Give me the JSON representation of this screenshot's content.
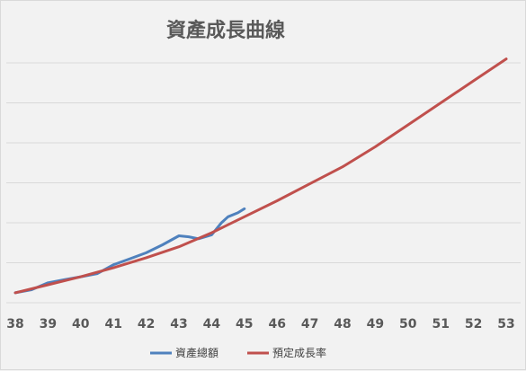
{
  "chart_data": {
    "type": "line",
    "title": "資產成長曲線",
    "xlabel": "",
    "ylabel": "",
    "x_ticks": [
      "38",
      "39",
      "40",
      "41",
      "42",
      "43",
      "44",
      "45",
      "46",
      "47",
      "48",
      "49",
      "50",
      "51",
      "52",
      "53"
    ],
    "xlim": [
      38,
      53
    ],
    "y_range": [
      0,
      120
    ],
    "y_tick_labels_shown": false,
    "grid": "horizontal",
    "legend": "bottom",
    "series": [
      {
        "name": "資產總額",
        "color": "#4f81bd",
        "x": [
          38,
          38.5,
          39,
          39.5,
          40,
          40.5,
          41,
          41.5,
          42,
          42.5,
          43,
          43.3,
          43.6,
          44,
          44.3,
          44.5,
          44.8,
          45
        ],
        "y": [
          5,
          6.5,
          10,
          11.5,
          13,
          14.5,
          19,
          22,
          25,
          29,
          33.5,
          33,
          32,
          34,
          40,
          43,
          45,
          47
        ]
      },
      {
        "name": "預定成長率",
        "color": "#c0504d",
        "x": [
          38,
          39,
          40,
          41,
          42,
          43,
          44,
          45,
          46,
          47,
          48,
          49,
          50,
          51,
          52,
          53
        ],
        "y": [
          5,
          9,
          13,
          17.5,
          22.5,
          28,
          35,
          43,
          51,
          59.5,
          68,
          78,
          89,
          100,
          111,
          122
        ]
      }
    ]
  }
}
